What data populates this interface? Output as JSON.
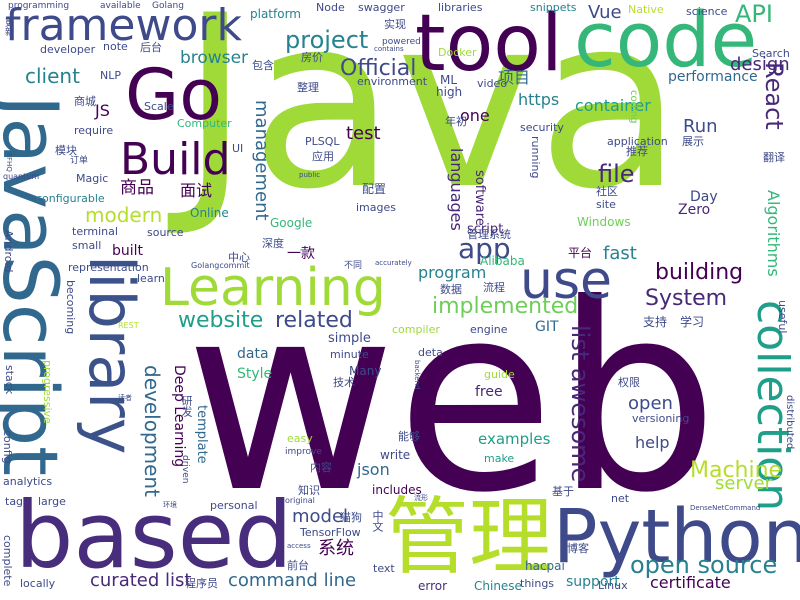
{
  "cloud": {
    "words": [
      "Java",
      "web",
      "JavaScript",
      "library",
      "based",
      "管理",
      "Python",
      "tool",
      "code",
      "Go",
      "framework",
      "Learning",
      "use",
      "collection",
      "Build",
      "project",
      "React",
      "API",
      "Official",
      "file",
      "implemented",
      "app",
      "open source",
      "building",
      "list awesome",
      "website",
      "related",
      "System",
      "Machine",
      "server",
      "curated list",
      "command line",
      "development",
      "languages",
      "management",
      "modern",
      "client",
      "browser",
      "design",
      "container",
      "performance",
      "Vue",
      "fast",
      "program",
      "open",
      "examples",
      "json",
      "help",
      "model",
      "系统",
      "Algorithms",
      "商品",
      "面试",
      "项目",
      "Run",
      "Deep Learning",
      "certificate",
      "JS",
      "https",
      "test",
      "one",
      "data",
      "Style",
      "Many",
      "free",
      "Day",
      "Zero",
      "GIT",
      "security",
      "software",
      "script",
      "simple",
      "template",
      "progressive",
      "guide",
      "make",
      "write",
      "includes",
      "support",
      "error",
      "Chinese",
      "hacpai",
      "Linux",
      "Windows",
      "Google",
      "Online",
      "Alibaba",
      "Docker",
      "Node",
      "platform",
      "swagger",
      "libraries",
      "snippets",
      "Native",
      "science",
      "Search",
      "ML",
      "high",
      "video",
      "Scale",
      "Computer",
      "UI",
      "PLSQL",
      "environment",
      "配置",
      "images",
      "平台",
      "一款",
      "built",
      "representation",
      "terminal",
      "source",
      "small",
      "learn",
      "Magic",
      "configurable",
      "require",
      "programming",
      "available",
      "Golang",
      "developer",
      "note",
      "后台",
      "实现",
      "powered",
      "contains",
      "房价",
      "包含",
      "整理",
      "NLP",
      "商城",
      "模块",
      "订单",
      "年初",
      "应用",
      "推荐",
      "展示",
      "翻译",
      "社区",
      "site",
      "running",
      "coding",
      "application",
      "管理系统",
      "深度",
      "中心",
      "不同",
      "accurately",
      "数据",
      "流程",
      "支持",
      "学习",
      "compiler",
      "engine",
      "REST",
      "useful",
      "minute",
      "技术",
      "权限",
      "deta",
      "versioning",
      "能够",
      "内容",
      "improve",
      "知识",
      "研发",
      "driven",
      "基于",
      "distributed",
      "net",
      "DenseNetCommand",
      "TensorFlow",
      "personal",
      "original",
      "环境",
      "中文",
      "博客",
      "前台",
      "程序员",
      "things",
      "locally",
      "complete",
      "access",
      "text",
      "tag",
      "large",
      "analytics",
      "config",
      "stack",
      "Android",
      "becoming",
      "quantum",
      "FFHQ",
      "更新",
      "public",
      "Golangcommit",
      "读者",
      "backend",
      "流形",
      "猫狗",
      "easy",
      "一"
    ]
  }
}
